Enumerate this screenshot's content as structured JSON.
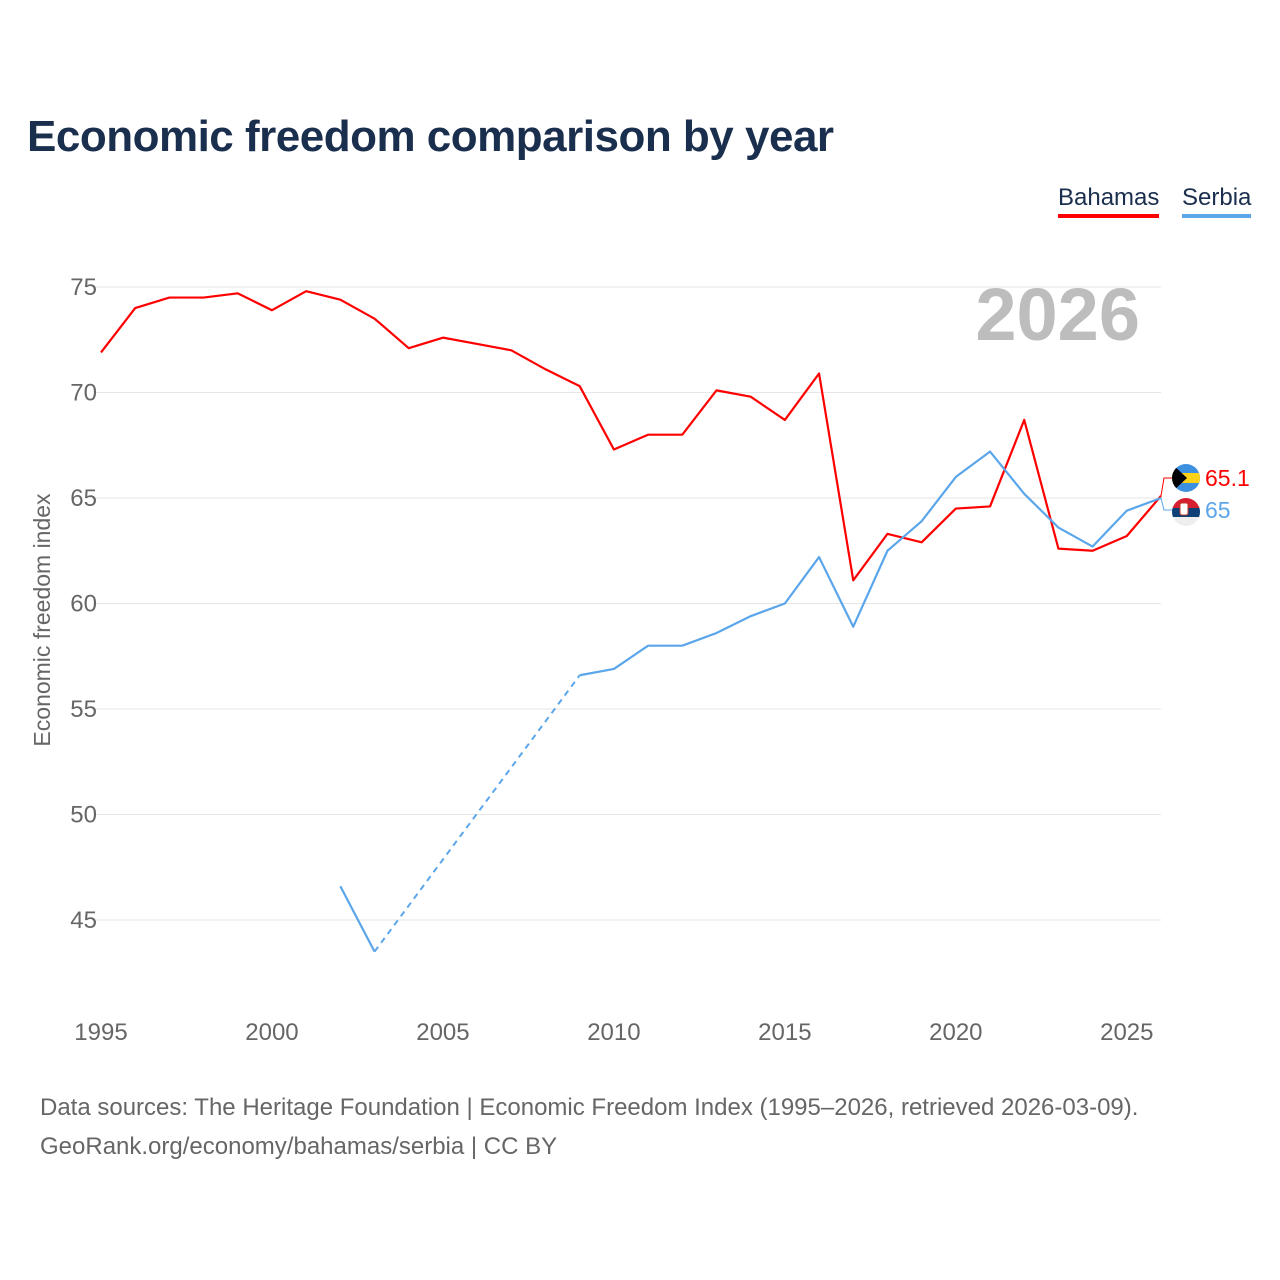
{
  "chart_data": {
    "type": "line",
    "title": "Economic freedom comparison by year",
    "ylabel": "Economic freedom index",
    "xlabel": "",
    "ylim": [
      41,
      77
    ],
    "xlim": [
      1995,
      2026
    ],
    "yticks": [
      45,
      50,
      55,
      60,
      65,
      70,
      75
    ],
    "xticks": [
      1995,
      2000,
      2005,
      2010,
      2015,
      2020,
      2025
    ],
    "grid": true,
    "legend_position": "top-right",
    "year_label": "2026",
    "x": [
      1995,
      1996,
      1997,
      1998,
      1999,
      2000,
      2001,
      2002,
      2003,
      2004,
      2005,
      2006,
      2007,
      2008,
      2009,
      2010,
      2011,
      2012,
      2013,
      2014,
      2015,
      2016,
      2017,
      2018,
      2019,
      2020,
      2021,
      2022,
      2023,
      2024,
      2025,
      2026
    ],
    "series": [
      {
        "name": "Bahamas",
        "color": "#ff0000",
        "end_label": "65.1",
        "values": [
          71.9,
          74.0,
          74.5,
          74.5,
          74.7,
          73.9,
          74.8,
          74.4,
          73.5,
          72.1,
          72.6,
          72.3,
          72.0,
          71.1,
          70.3,
          67.3,
          68.0,
          68.0,
          70.1,
          69.8,
          68.7,
          70.9,
          61.1,
          63.3,
          62.9,
          64.5,
          64.6,
          68.7,
          62.6,
          62.5,
          63.2,
          65.1
        ]
      },
      {
        "name": "Serbia",
        "color": "#5ba6ea",
        "end_label": "65",
        "values": [
          null,
          null,
          null,
          null,
          null,
          null,
          null,
          46.6,
          43.5,
          null,
          null,
          null,
          null,
          null,
          56.6,
          56.9,
          58.0,
          58.0,
          58.6,
          59.4,
          60.0,
          62.2,
          58.9,
          62.5,
          63.9,
          66.0,
          67.2,
          65.2,
          63.6,
          62.7,
          64.4,
          65.0
        ]
      }
    ]
  },
  "footer": {
    "line1": "Data sources: The Heritage Foundation | Economic Freedom Index (1995–2026, retrieved 2026-03-09).",
    "line2": "GeoRank.org/economy/bahamas/serbia | CC BY"
  }
}
